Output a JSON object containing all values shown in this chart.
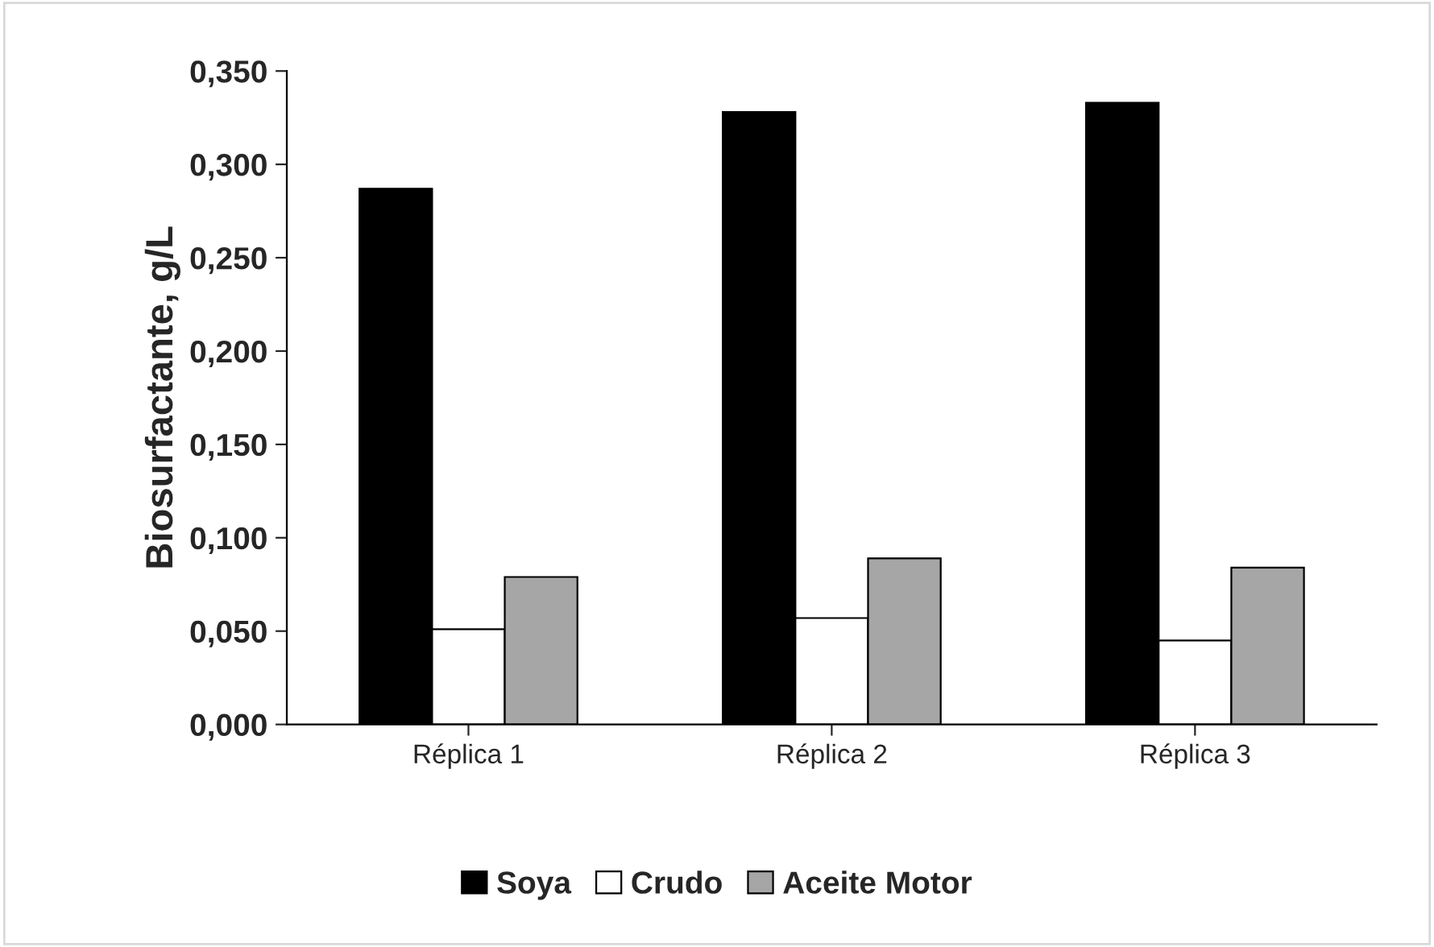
{
  "chart_data": {
    "type": "bar",
    "ylabel": "Biosurfactante, g/L",
    "categories": [
      "Réplica 1",
      "Réplica 2",
      "Réplica 3"
    ],
    "series": [
      {
        "name": "Soya",
        "color": "#000000",
        "values": [
          0.287,
          0.328,
          0.333
        ]
      },
      {
        "name": "Crudo",
        "color": "#ffffff",
        "values": [
          0.051,
          0.057,
          0.045
        ]
      },
      {
        "name": "Aceite Motor",
        "color": "#a6a6a6",
        "values": [
          0.079,
          0.089,
          0.084
        ]
      }
    ],
    "ylim": [
      0,
      0.35
    ],
    "yticks": [
      {
        "value": 0,
        "label": "0,000"
      },
      {
        "value": 0.05,
        "label": "0,050"
      },
      {
        "value": 0.1,
        "label": "0,100"
      },
      {
        "value": 0.15,
        "label": "0,150"
      },
      {
        "value": 0.2,
        "label": "0,200"
      },
      {
        "value": 0.25,
        "label": "0,250"
      },
      {
        "value": 0.3,
        "label": "0,300"
      },
      {
        "value": 0.35,
        "label": "0,350"
      }
    ],
    "legend": "bottom",
    "grid": false
  }
}
